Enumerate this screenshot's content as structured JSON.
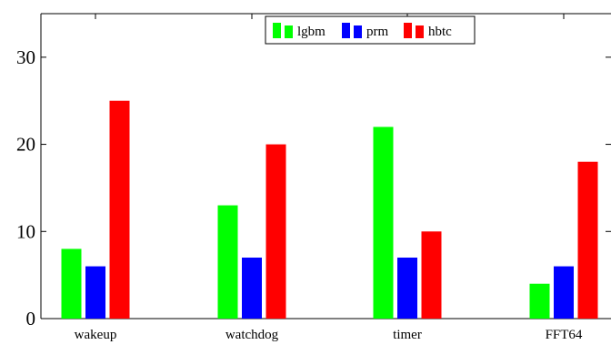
{
  "chart_data": {
    "type": "bar",
    "categories": [
      "wakeup",
      "watchdog",
      "timer",
      "FFT64"
    ],
    "series": [
      {
        "name": "lgbm",
        "color": "#00ff00",
        "values": [
          8,
          13,
          22,
          4
        ]
      },
      {
        "name": "prm",
        "color": "#0000ff",
        "values": [
          6,
          7,
          7,
          6
        ]
      },
      {
        "name": "hbtc",
        "color": "#ff0000",
        "values": [
          25,
          20,
          10,
          18
        ]
      }
    ],
    "yticks": [
      0,
      10,
      20,
      30
    ],
    "ylim": [
      0,
      35
    ],
    "grid": false,
    "legend_position": "top-center"
  }
}
